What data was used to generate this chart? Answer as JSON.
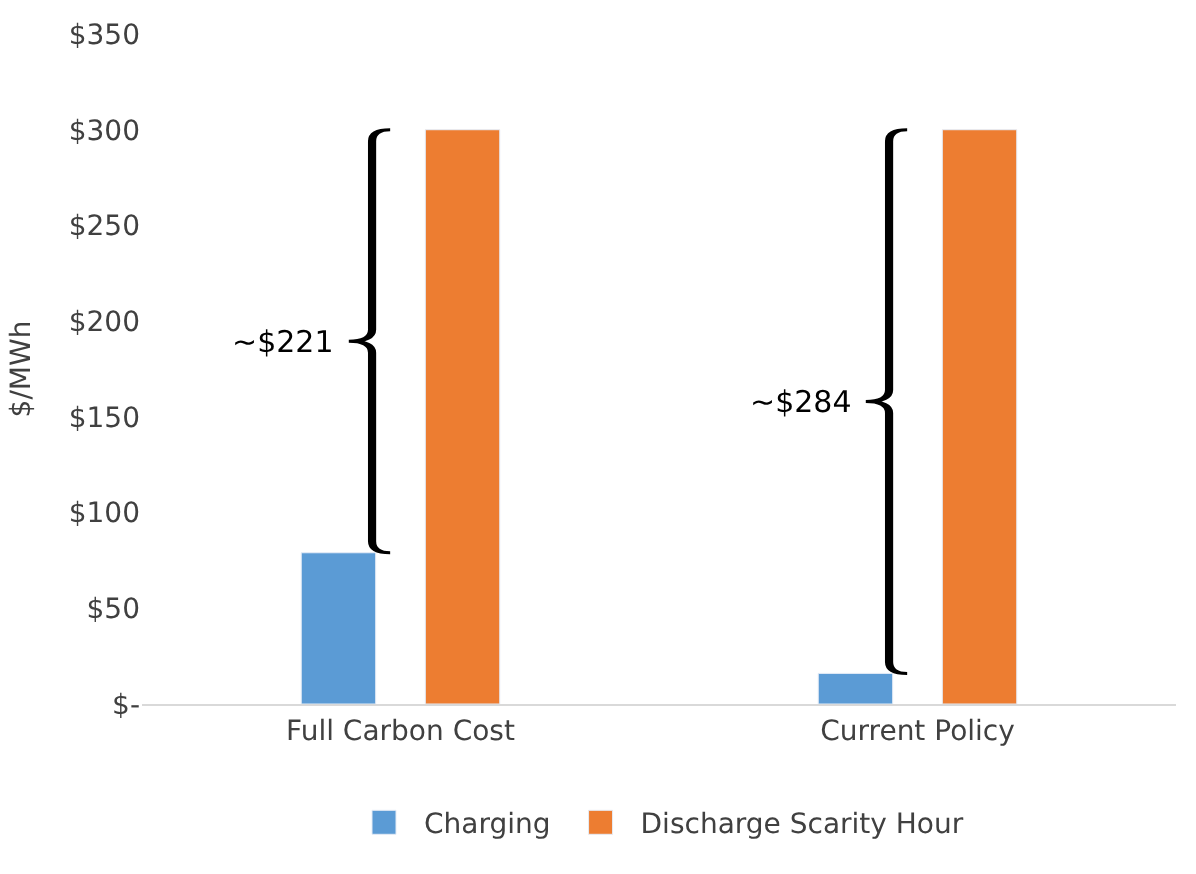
{
  "chart_data": {
    "type": "bar",
    "ylabel": "$/MWh",
    "categories": [
      "Full Carbon Cost",
      "Current Policy"
    ],
    "series": [
      {
        "name": "Charging",
        "color": "#5b9bd5",
        "values": [
          79,
          16
        ]
      },
      {
        "name": "Discharge Scarity Hour",
        "color": "#ed7d31",
        "values": [
          300,
          300
        ]
      }
    ],
    "ylim": [
      0,
      350
    ],
    "yticks": [
      {
        "value": 0,
        "label": "$-"
      },
      {
        "value": 50,
        "label": "$50"
      },
      {
        "value": 100,
        "label": "$100"
      },
      {
        "value": 150,
        "label": "$150"
      },
      {
        "value": 200,
        "label": "$200"
      },
      {
        "value": 250,
        "label": "$250"
      },
      {
        "value": 300,
        "label": "$300"
      },
      {
        "value": 350,
        "label": "$350"
      }
    ],
    "annotations": [
      "~$221",
      "~$284"
    ],
    "legend": "bottom"
  }
}
